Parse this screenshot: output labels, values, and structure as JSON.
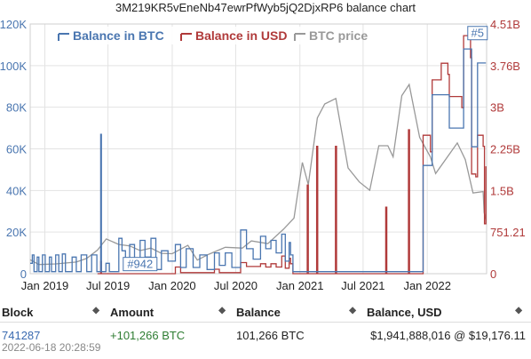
{
  "chart_data": {
    "type": "line",
    "title": "3M219KR5vEneNb47ewrPfWyb5jQ2DjxRP6 balance chart",
    "x_ticks": [
      "Jan 2019",
      "Jul 2019",
      "Jan 2020",
      "Jul 2020",
      "Jan 2021",
      "Jul 2021",
      "Jan 2022"
    ],
    "x_tick_dates": [
      "2019-01-01",
      "2019-07-01",
      "2020-01-01",
      "2020-07-01",
      "2021-01-01",
      "2021-07-01",
      "2022-01-01"
    ],
    "x_range": [
      "2018-11-20",
      "2022-06-20"
    ],
    "y_left_ticks": [
      "0",
      "20K",
      "40K",
      "60K",
      "80K",
      "100K",
      "120K"
    ],
    "y_left_range": [
      0,
      120000
    ],
    "y_right_ticks": [
      "0",
      "751.21",
      "1.5B",
      "2.25B",
      "3B",
      "3.76B",
      "4.51B"
    ],
    "y_right_range": [
      0,
      4510000000
    ],
    "grid": true,
    "legend_position": "top",
    "series": [
      {
        "name": "Balance in BTC",
        "axis": "left",
        "color": "#4a76b0",
        "points": [
          [
            "2018-11-20",
            5000
          ],
          [
            "2018-11-26",
            9000
          ],
          [
            "2018-12-01",
            1000
          ],
          [
            "2018-12-10",
            8000
          ],
          [
            "2018-12-15",
            1000
          ],
          [
            "2018-12-25",
            9000
          ],
          [
            "2019-01-02",
            1000
          ],
          [
            "2019-01-14",
            8000
          ],
          [
            "2019-01-20",
            1000
          ],
          [
            "2019-02-01",
            9000
          ],
          [
            "2019-02-10",
            1000
          ],
          [
            "2019-02-20",
            9500
          ],
          [
            "2019-03-01",
            1000
          ],
          [
            "2019-03-20",
            8000
          ],
          [
            "2019-04-01",
            1000
          ],
          [
            "2019-04-15",
            9000
          ],
          [
            "2019-05-01",
            1000
          ],
          [
            "2019-05-15",
            9000
          ],
          [
            "2019-05-30",
            1000
          ],
          [
            "2019-06-10",
            67000
          ],
          [
            "2019-06-12",
            1000
          ],
          [
            "2019-06-25",
            5000
          ],
          [
            "2019-07-05",
            1000
          ],
          [
            "2019-08-01",
            17000
          ],
          [
            "2019-08-10",
            11000
          ],
          [
            "2019-08-20",
            4000
          ],
          [
            "2019-09-01",
            14000
          ],
          [
            "2019-09-15",
            6000
          ],
          [
            "2019-10-01",
            16000
          ],
          [
            "2019-10-15",
            8000
          ],
          [
            "2019-11-01",
            17000
          ],
          [
            "2019-11-15",
            2000
          ],
          [
            "2019-12-01",
            11000
          ],
          [
            "2019-12-20",
            6000
          ],
          [
            "2020-01-10",
            14000
          ],
          [
            "2020-01-25",
            3000
          ],
          [
            "2020-02-10",
            12000
          ],
          [
            "2020-03-01",
            3000
          ],
          [
            "2020-03-20",
            9000
          ],
          [
            "2020-04-10",
            2000
          ],
          [
            "2020-05-01",
            10000
          ],
          [
            "2020-05-15",
            4000
          ],
          [
            "2020-06-01",
            10000
          ],
          [
            "2020-06-20",
            3000
          ],
          [
            "2020-07-15",
            21000
          ],
          [
            "2020-08-01",
            12000
          ],
          [
            "2020-08-20",
            7000
          ],
          [
            "2020-09-10",
            18000
          ],
          [
            "2020-09-25",
            12000
          ],
          [
            "2020-10-10",
            16000
          ],
          [
            "2020-10-25",
            10000
          ],
          [
            "2020-11-10",
            19000
          ],
          [
            "2020-11-20",
            6000
          ],
          [
            "2020-12-01",
            15000
          ],
          [
            "2020-12-05",
            9000
          ],
          [
            "2020-12-12",
            1000
          ],
          [
            "2021-12-15",
            1000
          ],
          [
            "2021-12-20",
            52000
          ],
          [
            "2022-01-10",
            52000
          ],
          [
            "2022-01-15",
            86000
          ],
          [
            "2022-03-01",
            86000
          ],
          [
            "2022-03-05",
            70000
          ],
          [
            "2022-04-10",
            70000
          ],
          [
            "2022-04-15",
            108000
          ],
          [
            "2022-05-05",
            108000
          ],
          [
            "2022-05-08",
            61000
          ],
          [
            "2022-05-20",
            61000
          ],
          [
            "2022-05-25",
            101266
          ],
          [
            "2022-06-18",
            101266
          ]
        ]
      },
      {
        "name": "Balance in USD",
        "axis": "right",
        "color": "#b03a3a",
        "points": [
          [
            "2019-06-01",
            0
          ],
          [
            "2019-06-10",
            220000000
          ],
          [
            "2019-06-12",
            0
          ],
          [
            "2020-01-10",
            120000000
          ],
          [
            "2020-01-25",
            20000000
          ],
          [
            "2020-05-01",
            80000000
          ],
          [
            "2020-05-15",
            20000000
          ],
          [
            "2020-07-15",
            200000000
          ],
          [
            "2020-08-01",
            130000000
          ],
          [
            "2020-09-10",
            180000000
          ],
          [
            "2020-09-25",
            120000000
          ],
          [
            "2020-10-10",
            180000000
          ],
          [
            "2020-10-25",
            120000000
          ],
          [
            "2020-11-10",
            320000000
          ],
          [
            "2020-11-20",
            100000000
          ],
          [
            "2020-12-01",
            280000000
          ],
          [
            "2020-12-05",
            180000000
          ],
          [
            "2020-12-12",
            0
          ],
          [
            "2021-01-20",
            0
          ],
          [
            "2021-01-22",
            1600000000
          ],
          [
            "2021-01-25",
            0
          ],
          [
            "2021-02-15",
            0
          ],
          [
            "2021-02-18",
            2300000000
          ],
          [
            "2021-02-21",
            0
          ],
          [
            "2021-04-10",
            0
          ],
          [
            "2021-04-13",
            2300000000
          ],
          [
            "2021-04-16",
            0
          ],
          [
            "2021-09-01",
            0
          ],
          [
            "2021-09-04",
            1200000000
          ],
          [
            "2021-09-07",
            0
          ],
          [
            "2021-11-05",
            0
          ],
          [
            "2021-11-08",
            2600000000
          ],
          [
            "2021-11-11",
            0
          ],
          [
            "2021-12-15",
            0
          ],
          [
            "2021-12-20",
            2500000000
          ],
          [
            "2022-01-10",
            2200000000
          ],
          [
            "2022-01-15",
            3500000000
          ],
          [
            "2022-02-10",
            3800000000
          ],
          [
            "2022-03-01",
            3600000000
          ],
          [
            "2022-03-05",
            3200000000
          ],
          [
            "2022-04-10",
            3000000000
          ],
          [
            "2022-04-15",
            4300000000
          ],
          [
            "2022-05-05",
            3900000000
          ],
          [
            "2022-05-08",
            1800000000
          ],
          [
            "2022-05-20",
            1750000000
          ],
          [
            "2022-05-25",
            2500000000
          ],
          [
            "2022-06-10",
            2300000000
          ],
          [
            "2022-06-14",
            900000000
          ],
          [
            "2022-06-18",
            1940000000
          ]
        ]
      },
      {
        "name": "BTC price",
        "axis": "hidden",
        "color": "#999999",
        "points": [
          [
            "2018-11-20",
            5000
          ],
          [
            "2018-12-15",
            3300
          ],
          [
            "2019-02-01",
            3500
          ],
          [
            "2019-04-01",
            4200
          ],
          [
            "2019-05-01",
            5500
          ],
          [
            "2019-06-01",
            8500
          ],
          [
            "2019-06-26",
            12500
          ],
          [
            "2019-08-01",
            10500
          ],
          [
            "2019-09-01",
            10000
          ],
          [
            "2019-10-01",
            8300
          ],
          [
            "2019-11-01",
            9200
          ],
          [
            "2019-12-01",
            7300
          ],
          [
            "2020-01-01",
            7200
          ],
          [
            "2020-02-15",
            10200
          ],
          [
            "2020-03-13",
            4900
          ],
          [
            "2020-04-15",
            7000
          ],
          [
            "2020-06-01",
            9500
          ],
          [
            "2020-07-20",
            9200
          ],
          [
            "2020-08-15",
            11800
          ],
          [
            "2020-10-01",
            10800
          ],
          [
            "2020-11-15",
            16000
          ],
          [
            "2020-12-15",
            20000
          ],
          [
            "2021-01-08",
            40000
          ],
          [
            "2021-01-25",
            32000
          ],
          [
            "2021-02-20",
            56000
          ],
          [
            "2021-03-13",
            61000
          ],
          [
            "2021-04-14",
            63000
          ],
          [
            "2021-05-19",
            38000
          ],
          [
            "2021-06-20",
            33000
          ],
          [
            "2021-07-20",
            30000
          ],
          [
            "2021-08-15",
            46000
          ],
          [
            "2021-09-10",
            46000
          ],
          [
            "2021-09-25",
            42000
          ],
          [
            "2021-10-20",
            64000
          ],
          [
            "2021-11-10",
            68000
          ],
          [
            "2021-12-10",
            49000
          ],
          [
            "2022-01-10",
            42000
          ],
          [
            "2022-01-25",
            36000
          ],
          [
            "2022-03-28",
            47000
          ],
          [
            "2022-04-20",
            41000
          ],
          [
            "2022-05-12",
            29000
          ],
          [
            "2022-06-10",
            29500
          ],
          [
            "2022-06-13",
            22000
          ],
          [
            "2022-06-18",
            19176
          ]
        ]
      }
    ],
    "annotations": [
      {
        "label": "#942",
        "date": "2019-10-01",
        "value": 1000,
        "axis": "left"
      },
      {
        "label": "#5",
        "date": "2022-05-25",
        "value": 112000,
        "axis": "left"
      }
    ]
  },
  "table": {
    "headers": [
      "Block",
      "Amount",
      "Balance",
      "Balance, USD"
    ],
    "rows": [
      {
        "block": "741287",
        "amount": "+101,266 BTC",
        "balance": "101,266 BTC",
        "balance_usd": "$1,941,888,016 @ $19,176.11",
        "timestamp": "2022-06-18 20:28:59"
      }
    ]
  }
}
